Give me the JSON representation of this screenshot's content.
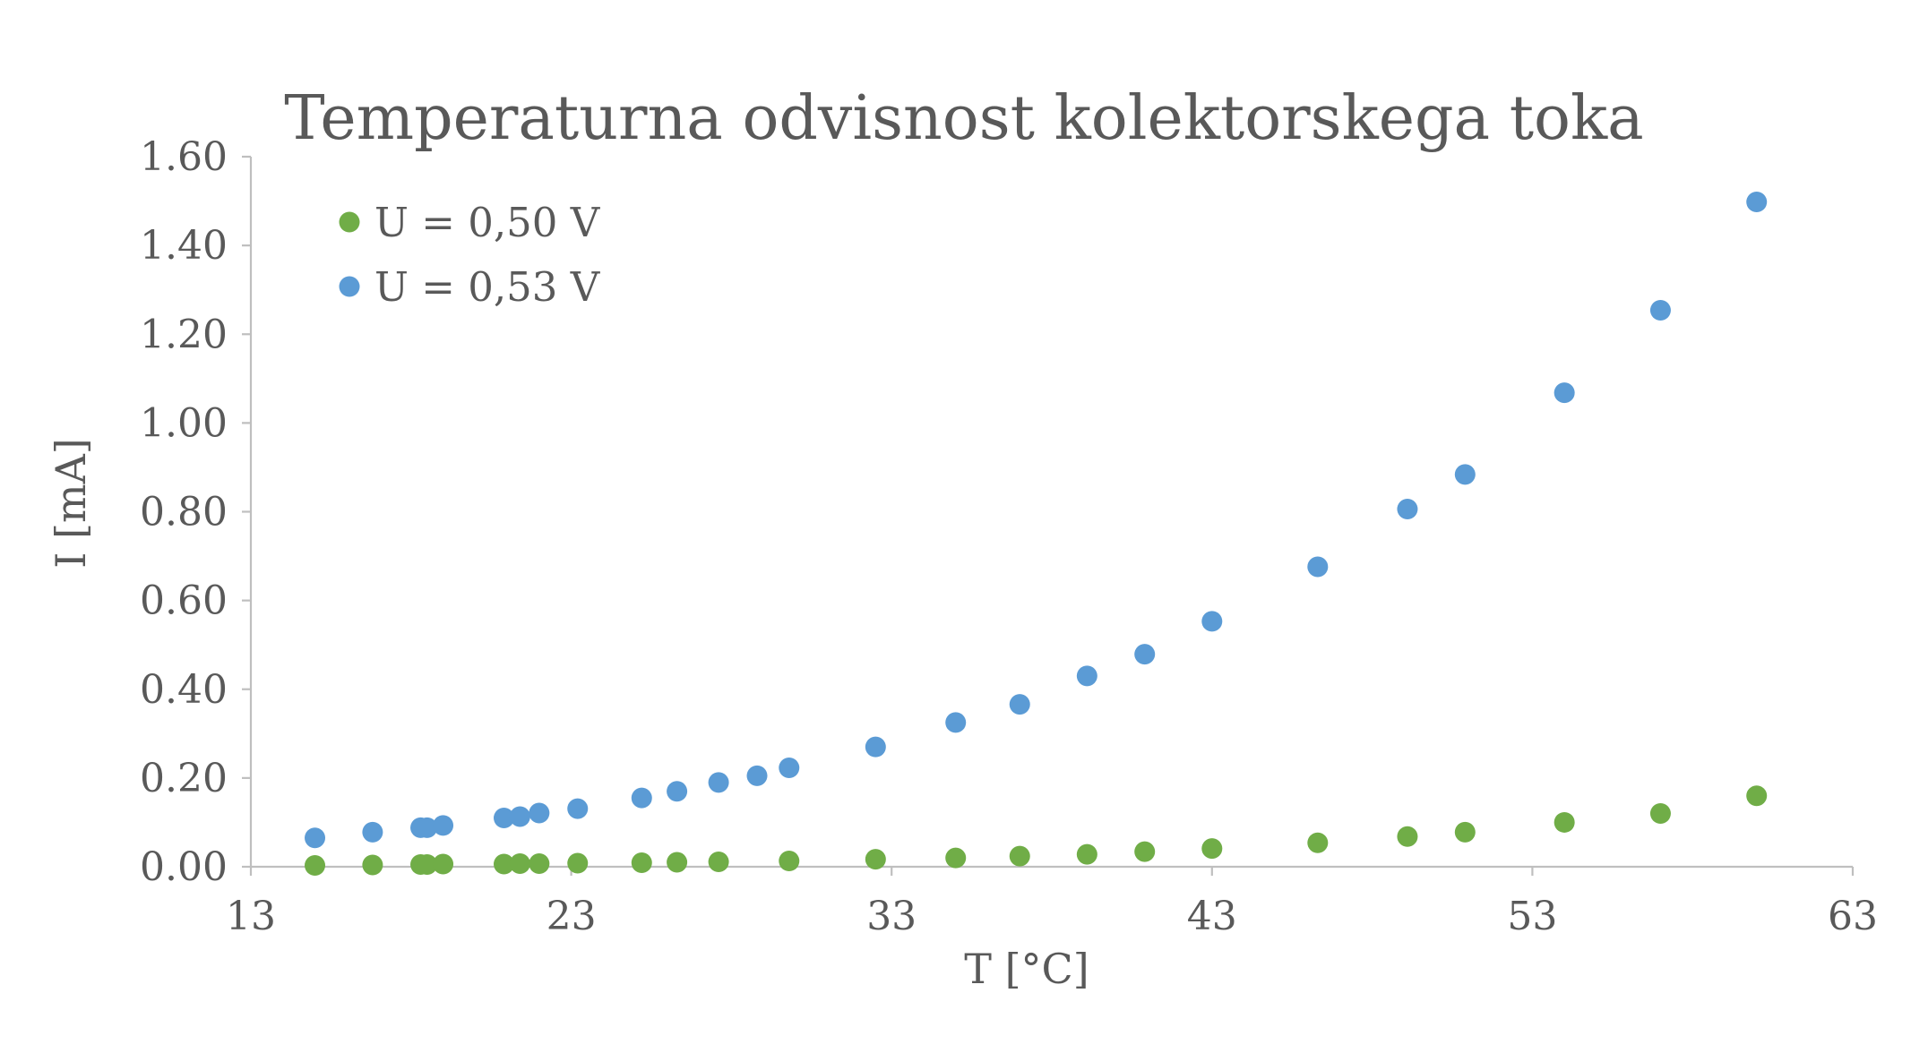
{
  "chart_data": {
    "type": "scatter",
    "title": "Temperaturna odvisnost kolektorskega toka",
    "xlabel": "T [°C]",
    "ylabel": "I [mA]",
    "xlim": [
      13,
      63
    ],
    "ylim": [
      0,
      1.6
    ],
    "x_ticks": [
      "13",
      "23",
      "33",
      "43",
      "53",
      "63"
    ],
    "y_ticks": [
      "0.00",
      "0.20",
      "0.40",
      "0.60",
      "0.80",
      "1.00",
      "1.20",
      "1.40",
      "1.60"
    ],
    "grid": false,
    "legend_position": "top-left",
    "series": [
      {
        "name": "U = 0,50 V",
        "color": "#70ad47",
        "x": [
          15.0,
          16.8,
          18.3,
          18.5,
          19.0,
          20.9,
          21.4,
          22.0,
          23.2,
          25.2,
          26.3,
          27.6,
          29.8,
          32.5,
          35.0,
          37.0,
          39.1,
          40.9,
          43.0,
          46.3,
          49.1,
          50.9,
          54.0,
          57.0,
          60.0
        ],
        "y": [
          0.003,
          0.004,
          0.005,
          0.005,
          0.006,
          0.006,
          0.007,
          0.007,
          0.008,
          0.009,
          0.01,
          0.011,
          0.013,
          0.017,
          0.02,
          0.024,
          0.028,
          0.034,
          0.041,
          0.054,
          0.068,
          0.078,
          0.1,
          0.12,
          0.16
        ]
      },
      {
        "name": "U = 0,53 V",
        "color": "#5b9bd5",
        "x": [
          15.0,
          16.8,
          18.3,
          18.5,
          19.0,
          20.9,
          21.4,
          22.0,
          23.2,
          25.2,
          26.3,
          27.6,
          28.8,
          29.8,
          32.5,
          35.0,
          37.0,
          39.1,
          40.9,
          43.0,
          46.3,
          49.1,
          50.9,
          54.0,
          57.0,
          60.0
        ],
        "y": [
          0.065,
          0.078,
          0.088,
          0.088,
          0.093,
          0.11,
          0.113,
          0.121,
          0.131,
          0.155,
          0.17,
          0.19,
          0.205,
          0.223,
          0.27,
          0.325,
          0.366,
          0.43,
          0.479,
          0.553,
          0.676,
          0.806,
          0.884,
          1.068,
          1.254,
          1.498
        ]
      }
    ]
  }
}
